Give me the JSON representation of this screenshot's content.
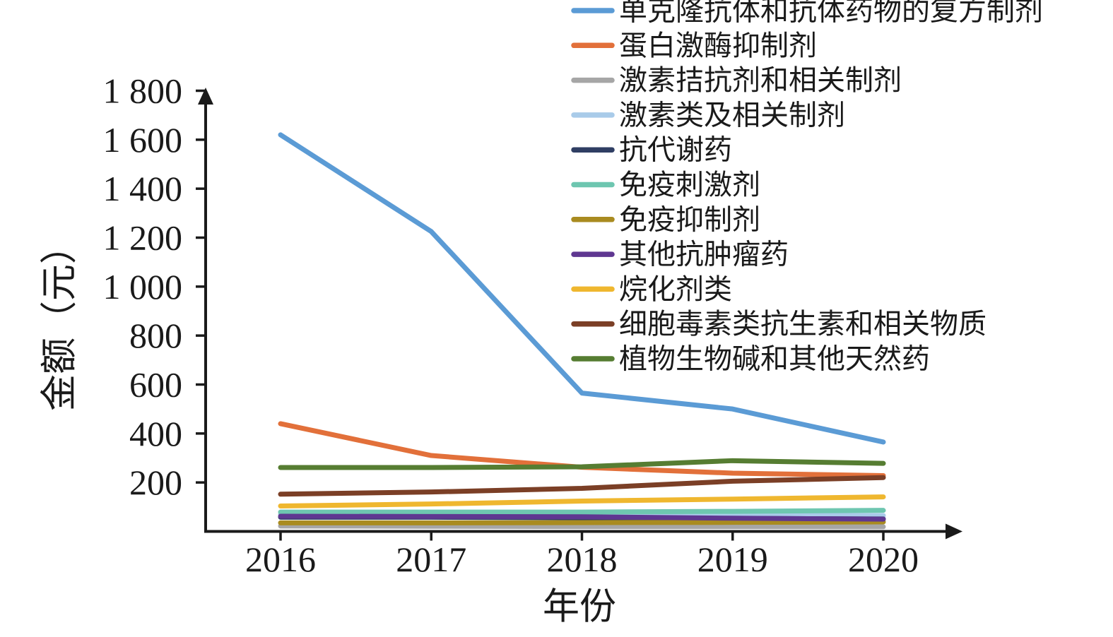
{
  "chart_data": {
    "type": "line",
    "title": "",
    "xlabel": "年份",
    "ylabel": "金额（元）",
    "x": [
      2016,
      2017,
      2018,
      2019,
      2020
    ],
    "x_tick_labels": [
      "2016",
      "2017",
      "2018",
      "2019",
      "2020"
    ],
    "y_ticks": [
      200,
      400,
      600,
      800,
      1000,
      1200,
      1400,
      1600,
      1800
    ],
    "y_tick_labels": [
      "200",
      "400",
      "600",
      "800",
      "1 000",
      "1 200",
      "1 400",
      "1 600",
      "1 800"
    ],
    "ylim": [
      0,
      1870
    ],
    "grid": false,
    "legend_position": "top-right",
    "axis_color": "#1a1a1a",
    "series": [
      {
        "name": "单克隆抗体和抗体药物的复方制剂",
        "color": "#5B9BD5",
        "values": [
          1620,
          1225,
          565,
          500,
          365
        ]
      },
      {
        "name": "蛋白激酶抑制剂",
        "color": "#E2703A",
        "values": [
          440,
          310,
          262,
          238,
          228
        ]
      },
      {
        "name": "激素拮抗剂和相关制剂",
        "color": "#A6A6A6",
        "values": [
          22,
          21,
          20,
          20,
          19
        ]
      },
      {
        "name": "激素类及相关制剂",
        "color": "#A9CBE9",
        "values": [
          70,
          69,
          68,
          66,
          65
        ]
      },
      {
        "name": "抗代谢药",
        "color": "#2F3E63",
        "values": [
          58,
          58,
          56,
          53,
          51
        ]
      },
      {
        "name": "免疫刺激剂",
        "color": "#6EC6B0",
        "values": [
          79,
          79,
          79,
          82,
          86
        ]
      },
      {
        "name": "免疫抑制剂",
        "color": "#A98B20",
        "values": [
          35,
          35,
          36,
          37,
          39
        ]
      },
      {
        "name": "其他抗肿瘤药",
        "color": "#5F3791",
        "values": [
          62,
          61,
          60,
          54,
          50
        ]
      },
      {
        "name": "烷化剂类",
        "color": "#EFB72F",
        "values": [
          104,
          112,
          124,
          132,
          141
        ]
      },
      {
        "name": "细胞毒素类抗生素和相关物质",
        "color": "#7B3F26",
        "values": [
          152,
          161,
          176,
          205,
          220
        ]
      },
      {
        "name": "植物生物碱和其他天然药",
        "color": "#567D32",
        "values": [
          261,
          261,
          264,
          289,
          278
        ]
      }
    ]
  }
}
